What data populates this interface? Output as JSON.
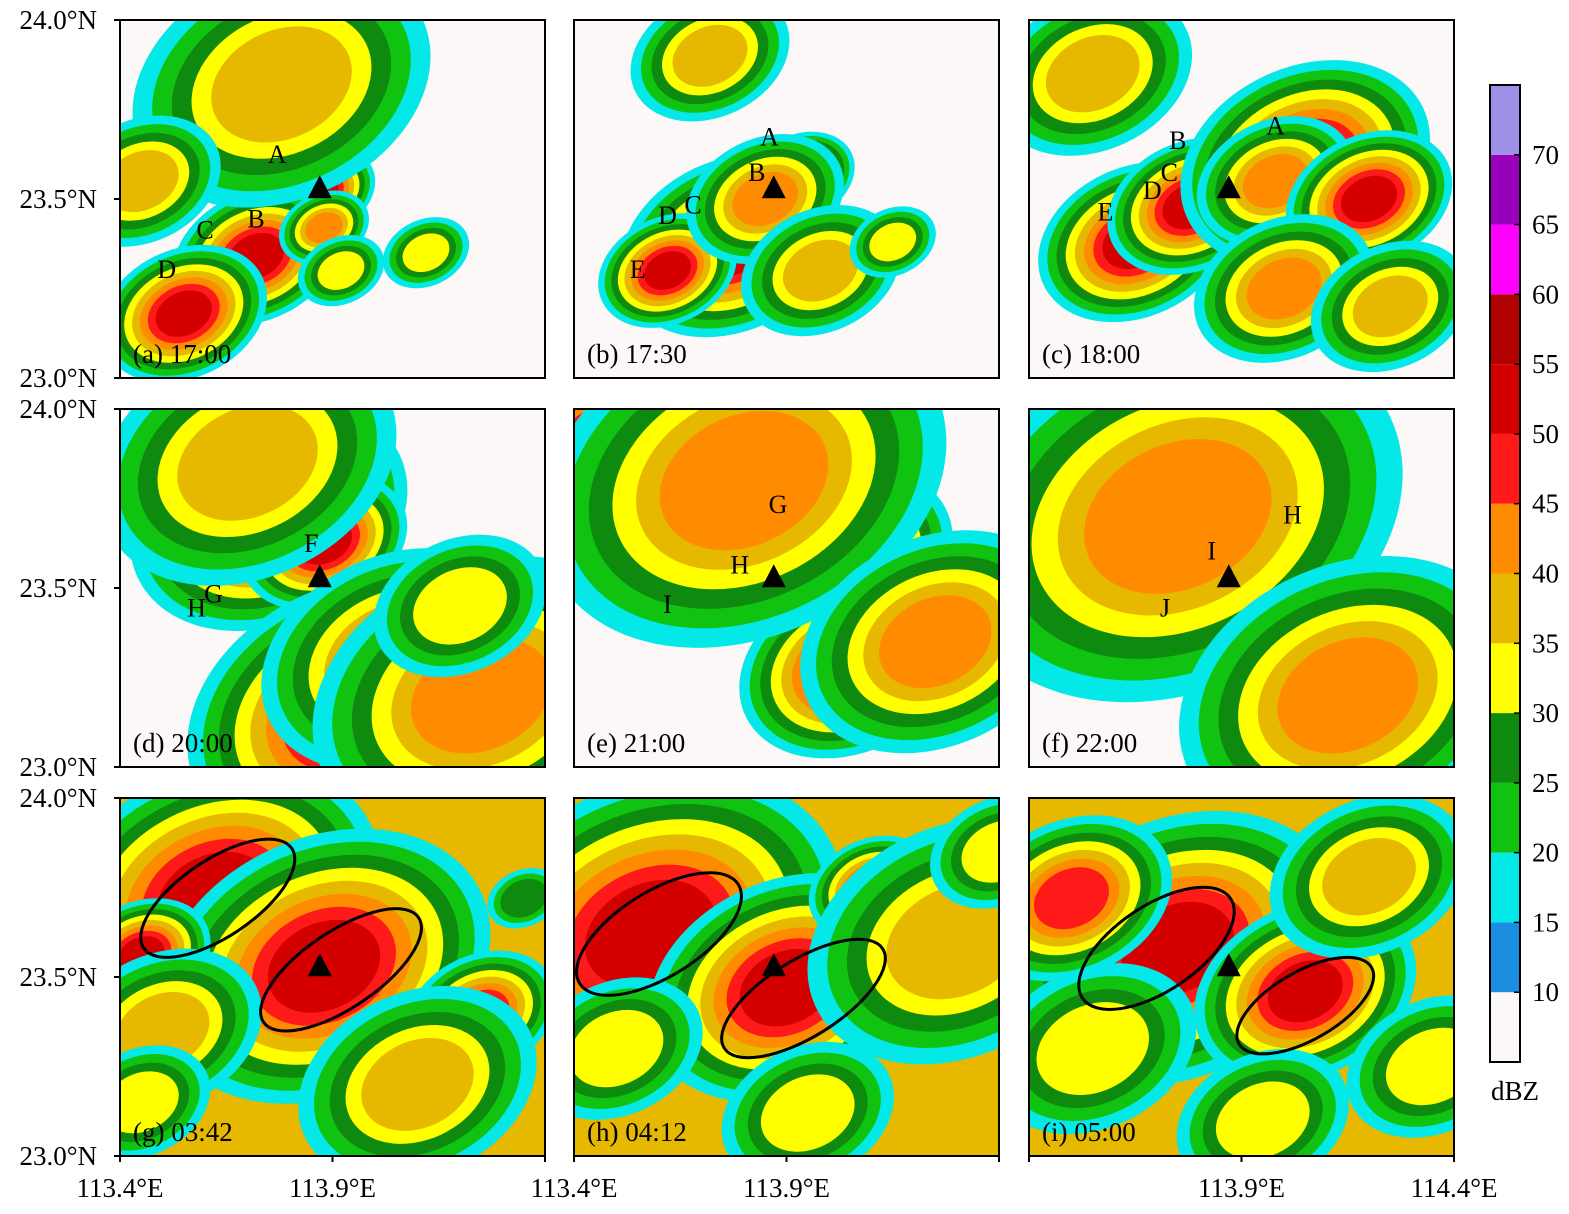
{
  "chart_data": {
    "type": "heatmap",
    "description_quantity": "radar reflectivity",
    "colorbar": {
      "unit": "dBZ",
      "levels": [
        10,
        15,
        20,
        25,
        30,
        35,
        40,
        45,
        50,
        55,
        60,
        65,
        70
      ],
      "colors": [
        "#fdf8f8",
        "#1c8fe3",
        "#05e8e8",
        "#11c311",
        "#0e8a0e",
        "#ffff00",
        "#e6b800",
        "#ff8c00",
        "#ff1a1a",
        "#d40000",
        "#b00000",
        "#ff00ff",
        "#9900bb",
        "#9f8fe6"
      ]
    },
    "axes": {
      "lon_ticks": [
        "113.4°E",
        "113.9°E",
        "114.4°E"
      ],
      "lat_ticks": [
        "24.0°N",
        "23.5°N",
        "23.0°N"
      ],
      "lon_range": [
        113.4,
        114.4
      ],
      "lat_range": [
        23.0,
        24.0
      ],
      "lon_tick_values": [
        113.4,
        113.9,
        114.4
      ],
      "lat_tick_values": [
        24.0,
        23.5,
        23.0
      ]
    },
    "station": {
      "lon": 113.87,
      "lat": 23.53,
      "marker": "triangle"
    },
    "panels": [
      {
        "label": "(a) 17:00",
        "background": "#fdf8f8",
        "cells": [
          {
            "lon": 113.87,
            "lat": 23.52,
            "r": 0.04,
            "level": 50
          },
          {
            "lon": 113.72,
            "lat": 23.34,
            "r": 0.06,
            "level": 50
          },
          {
            "lon": 113.55,
            "lat": 23.18,
            "r": 0.06,
            "level": 50
          },
          {
            "lon": 113.88,
            "lat": 23.42,
            "r": 0.04,
            "level": 40
          },
          {
            "lon": 113.78,
            "lat": 23.82,
            "r": 0.15,
            "level": 35
          },
          {
            "lon": 113.45,
            "lat": 23.55,
            "r": 0.08,
            "level": 35
          },
          {
            "lon": 113.92,
            "lat": 23.3,
            "r": 0.05,
            "level": 30
          },
          {
            "lon": 114.12,
            "lat": 23.35,
            "r": 0.05,
            "level": 30
          }
        ],
        "storm_labels": [
          {
            "text": "A",
            "lon": 113.77,
            "lat": 23.6
          },
          {
            "text": "B",
            "lon": 113.72,
            "lat": 23.42
          },
          {
            "text": "C",
            "lon": 113.6,
            "lat": 23.39
          },
          {
            "text": "D",
            "lon": 113.51,
            "lat": 23.28
          }
        ],
        "ellipses": []
      },
      {
        "label": "(b) 17:30",
        "background": "#fdf8f8",
        "cells": [
          {
            "lon": 113.77,
            "lat": 23.37,
            "r": 0.08,
            "level": 50
          },
          {
            "lon": 113.62,
            "lat": 23.3,
            "r": 0.05,
            "level": 50
          },
          {
            "lon": 113.93,
            "lat": 23.56,
            "r": 0.04,
            "level": 50
          },
          {
            "lon": 113.85,
            "lat": 23.5,
            "r": 0.07,
            "level": 40
          },
          {
            "lon": 113.98,
            "lat": 23.3,
            "r": 0.08,
            "level": 35
          },
          {
            "lon": 113.72,
            "lat": 23.9,
            "r": 0.08,
            "level": 35
          },
          {
            "lon": 114.15,
            "lat": 23.38,
            "r": 0.05,
            "level": 30
          }
        ],
        "storm_labels": [
          {
            "text": "A",
            "lon": 113.86,
            "lat": 23.65
          },
          {
            "text": "B",
            "lon": 113.83,
            "lat": 23.55
          },
          {
            "text": "C",
            "lon": 113.68,
            "lat": 23.46
          },
          {
            "text": "D",
            "lon": 113.62,
            "lat": 23.43
          },
          {
            "text": "E",
            "lon": 113.55,
            "lat": 23.28
          }
        ],
        "ellipses": []
      },
      {
        "label": "(c) 18:00",
        "background": "#fdf8f8",
        "cells": [
          {
            "lon": 113.65,
            "lat": 23.38,
            "r": 0.07,
            "level": 50
          },
          {
            "lon": 113.78,
            "lat": 23.48,
            "r": 0.06,
            "level": 50
          },
          {
            "lon": 114.05,
            "lat": 23.6,
            "r": 0.09,
            "level": 50
          },
          {
            "lon": 113.98,
            "lat": 23.55,
            "r": 0.07,
            "level": 40
          },
          {
            "lon": 114.2,
            "lat": 23.5,
            "r": 0.06,
            "level": 50
          },
          {
            "lon": 114.0,
            "lat": 23.25,
            "r": 0.08,
            "level": 40
          },
          {
            "lon": 113.55,
            "lat": 23.85,
            "r": 0.1,
            "level": 35
          },
          {
            "lon": 114.25,
            "lat": 23.2,
            "r": 0.08,
            "level": 35
          }
        ],
        "storm_labels": [
          {
            "text": "A",
            "lon": 113.98,
            "lat": 23.68
          },
          {
            "text": "B",
            "lon": 113.75,
            "lat": 23.64
          },
          {
            "text": "C",
            "lon": 113.73,
            "lat": 23.55
          },
          {
            "text": "D",
            "lon": 113.69,
            "lat": 23.5
          },
          {
            "text": "E",
            "lon": 113.58,
            "lat": 23.44
          }
        ],
        "ellipses": []
      },
      {
        "label": "(d) 20:00",
        "background": "#fdf8f8",
        "cells": [
          {
            "lon": 113.75,
            "lat": 23.7,
            "r": 0.1,
            "level": 50
          },
          {
            "lon": 113.88,
            "lat": 23.63,
            "r": 0.06,
            "level": 50
          },
          {
            "lon": 113.95,
            "lat": 23.15,
            "r": 0.12,
            "level": 50
          },
          {
            "lon": 114.05,
            "lat": 23.3,
            "r": 0.12,
            "level": 40
          },
          {
            "lon": 114.25,
            "lat": 23.2,
            "r": 0.15,
            "level": 40
          },
          {
            "lon": 113.7,
            "lat": 23.85,
            "r": 0.15,
            "level": 35
          },
          {
            "lon": 114.2,
            "lat": 23.45,
            "r": 0.1,
            "level": 30
          }
        ],
        "storm_labels": [
          {
            "text": "F",
            "lon": 113.85,
            "lat": 23.6
          },
          {
            "text": "G",
            "lon": 113.62,
            "lat": 23.46
          },
          {
            "text": "H",
            "lon": 113.58,
            "lat": 23.42
          }
        ],
        "ellipses": []
      },
      {
        "label": "(e) 21:00",
        "background": "#fdf8f8",
        "cells": [
          {
            "lon": 113.9,
            "lat": 23.68,
            "r": 0.1,
            "level": 50
          },
          {
            "lon": 114.03,
            "lat": 23.58,
            "r": 0.08,
            "level": 50
          },
          {
            "lon": 113.5,
            "lat": 23.7,
            "r": 0.07,
            "level": 50
          },
          {
            "lon": 113.45,
            "lat": 23.92,
            "r": 0.06,
            "level": 50
          },
          {
            "lon": 114.05,
            "lat": 23.28,
            "r": 0.08,
            "level": 50
          },
          {
            "lon": 113.8,
            "lat": 23.8,
            "r": 0.18,
            "level": 40
          },
          {
            "lon": 114.25,
            "lat": 23.35,
            "r": 0.12,
            "level": 40
          }
        ],
        "storm_labels": [
          {
            "text": "G",
            "lon": 113.88,
            "lat": 23.71
          },
          {
            "text": "H",
            "lon": 113.79,
            "lat": 23.54
          },
          {
            "text": "I",
            "lon": 113.62,
            "lat": 23.43
          }
        ],
        "ellipses": []
      },
      {
        "label": "(f) 22:00",
        "background": "#fdf8f8",
        "cells": [
          {
            "lon": 113.6,
            "lat": 23.88,
            "r": 0.12,
            "level": 50
          },
          {
            "lon": 113.9,
            "lat": 23.6,
            "r": 0.06,
            "level": 50
          },
          {
            "lon": 114.05,
            "lat": 23.65,
            "r": 0.06,
            "level": 50
          },
          {
            "lon": 113.75,
            "lat": 23.45,
            "r": 0.05,
            "level": 50
          },
          {
            "lon": 114.2,
            "lat": 23.33,
            "r": 0.08,
            "level": 50
          },
          {
            "lon": 114.35,
            "lat": 23.08,
            "r": 0.06,
            "level": 50
          },
          {
            "lon": 113.75,
            "lat": 23.7,
            "r": 0.2,
            "level": 40
          },
          {
            "lon": 114.15,
            "lat": 23.2,
            "r": 0.15,
            "level": 40
          }
        ],
        "storm_labels": [
          {
            "text": "H",
            "lon": 114.02,
            "lat": 23.68
          },
          {
            "text": "I",
            "lon": 113.83,
            "lat": 23.58
          },
          {
            "text": "J",
            "lon": 113.72,
            "lat": 23.42
          }
        ],
        "ellipses": []
      },
      {
        "label": "(g) 03:42",
        "background": "#e6b800",
        "cells": [
          {
            "lon": 113.62,
            "lat": 23.72,
            "r": 0.12,
            "level": 50
          },
          {
            "lon": 113.88,
            "lat": 23.53,
            "r": 0.12,
            "level": 50
          },
          {
            "lon": 113.45,
            "lat": 23.56,
            "r": 0.05,
            "level": 50
          },
          {
            "lon": 114.25,
            "lat": 23.4,
            "r": 0.06,
            "level": 45
          },
          {
            "lon": 113.5,
            "lat": 23.35,
            "r": 0.1,
            "level": 35
          },
          {
            "lon": 114.1,
            "lat": 23.2,
            "r": 0.12,
            "level": 35
          },
          {
            "lon": 113.45,
            "lat": 23.15,
            "r": 0.08,
            "level": 30
          },
          {
            "lon": 114.35,
            "lat": 23.72,
            "r": 0.05,
            "level": 25
          }
        ],
        "storm_labels": [],
        "ellipses": [
          {
            "lon": 113.63,
            "lat": 23.72,
            "rx_deg": 0.21,
            "ry_deg": 0.09,
            "rotate": -34
          },
          {
            "lon": 113.92,
            "lat": 23.52,
            "rx_deg": 0.22,
            "ry_deg": 0.09,
            "rotate": -34
          }
        ]
      },
      {
        "label": "(h) 04:12",
        "background": "#e6b800",
        "cells": [
          {
            "lon": 113.58,
            "lat": 23.62,
            "r": 0.14,
            "level": 50
          },
          {
            "lon": 113.9,
            "lat": 23.47,
            "r": 0.1,
            "level": 50
          },
          {
            "lon": 114.1,
            "lat": 23.75,
            "r": 0.05,
            "level": 45
          },
          {
            "lon": 113.5,
            "lat": 23.3,
            "r": 0.1,
            "level": 30
          },
          {
            "lon": 113.95,
            "lat": 23.12,
            "r": 0.1,
            "level": 30
          },
          {
            "lon": 114.3,
            "lat": 23.6,
            "r": 0.15,
            "level": 35
          },
          {
            "lon": 114.4,
            "lat": 23.85,
            "r": 0.08,
            "level": 30
          }
        ],
        "storm_labels": [],
        "ellipses": [
          {
            "lon": 113.6,
            "lat": 23.62,
            "rx_deg": 0.22,
            "ry_deg": 0.1,
            "rotate": -32
          },
          {
            "lon": 113.94,
            "lat": 23.44,
            "rx_deg": 0.22,
            "ry_deg": 0.09,
            "rotate": -32
          }
        ]
      },
      {
        "label": "(i) 05:00",
        "background": "#e6b800",
        "cells": [
          {
            "lon": 113.75,
            "lat": 23.58,
            "r": 0.12,
            "level": 50
          },
          {
            "lon": 114.05,
            "lat": 23.46,
            "r": 0.08,
            "level": 50
          },
          {
            "lon": 113.5,
            "lat": 23.72,
            "r": 0.08,
            "level": 45
          },
          {
            "lon": 114.2,
            "lat": 23.78,
            "r": 0.1,
            "level": 35
          },
          {
            "lon": 113.55,
            "lat": 23.3,
            "r": 0.12,
            "level": 30
          },
          {
            "lon": 114.35,
            "lat": 23.25,
            "r": 0.1,
            "level": 30
          },
          {
            "lon": 113.95,
            "lat": 23.1,
            "r": 0.1,
            "level": 30
          }
        ],
        "storm_labels": [],
        "ellipses": [
          {
            "lon": 113.7,
            "lat": 23.58,
            "rx_deg": 0.21,
            "ry_deg": 0.1,
            "rotate": -34
          },
          {
            "lon": 114.05,
            "lat": 23.42,
            "rx_deg": 0.18,
            "ry_deg": 0.08,
            "rotate": -30
          }
        ]
      }
    ]
  }
}
